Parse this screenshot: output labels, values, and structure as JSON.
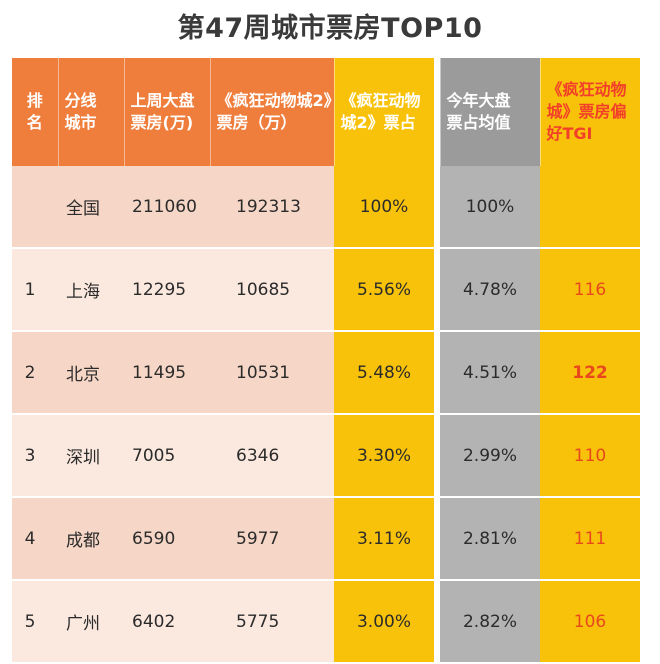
{
  "title": "第47周城市票房TOP10",
  "headers": {
    "rank": [
      "排",
      "名"
    ],
    "city": [
      "分线",
      "城市"
    ],
    "last_week": [
      "上周大盘",
      "票房(万)"
    ],
    "zootopia": [
      "《疯狂动物城2》",
      "票房（万）"
    ],
    "share": [
      "《疯狂动物",
      "城2》票占"
    ],
    "avg_share": [
      "今年大盘",
      "票占均值"
    ],
    "tgi": [
      "《疯狂动物",
      "城》票房偏",
      "好TGI"
    ]
  },
  "rows": [
    {
      "rank": "",
      "city": "全国",
      "last_week": "211060",
      "zootopia": "192313",
      "share": "100%",
      "avg_share": "100%",
      "tgi": ""
    },
    {
      "rank": "1",
      "city": "上海",
      "last_week": "12295",
      "zootopia": "10685",
      "share": "5.56%",
      "avg_share": "4.78%",
      "tgi": "116"
    },
    {
      "rank": "2",
      "city": "北京",
      "last_week": "11495",
      "zootopia": "10531",
      "share": "5.48%",
      "avg_share": "4.51%",
      "tgi": "122"
    },
    {
      "rank": "3",
      "city": "深圳",
      "last_week": "7005",
      "zootopia": "6346",
      "share": "3.30%",
      "avg_share": "2.99%",
      "tgi": "110"
    },
    {
      "rank": "4",
      "city": "成都",
      "last_week": "6590",
      "zootopia": "5977",
      "share": "3.11%",
      "avg_share": "2.81%",
      "tgi": "111"
    },
    {
      "rank": "5",
      "city": "广州",
      "last_week": "6402",
      "zootopia": "5775",
      "share": "3.00%",
      "avg_share": "2.82%",
      "tgi": "106"
    }
  ],
  "colors": {
    "header_orange": "#ef7d3b",
    "accent_yellow": "#f9c20a",
    "neutral_gray": "#9b9b9b",
    "tgi_red": "#e8481c",
    "row_dark": "#f6d6c6",
    "row_light": "#fbe9df"
  }
}
